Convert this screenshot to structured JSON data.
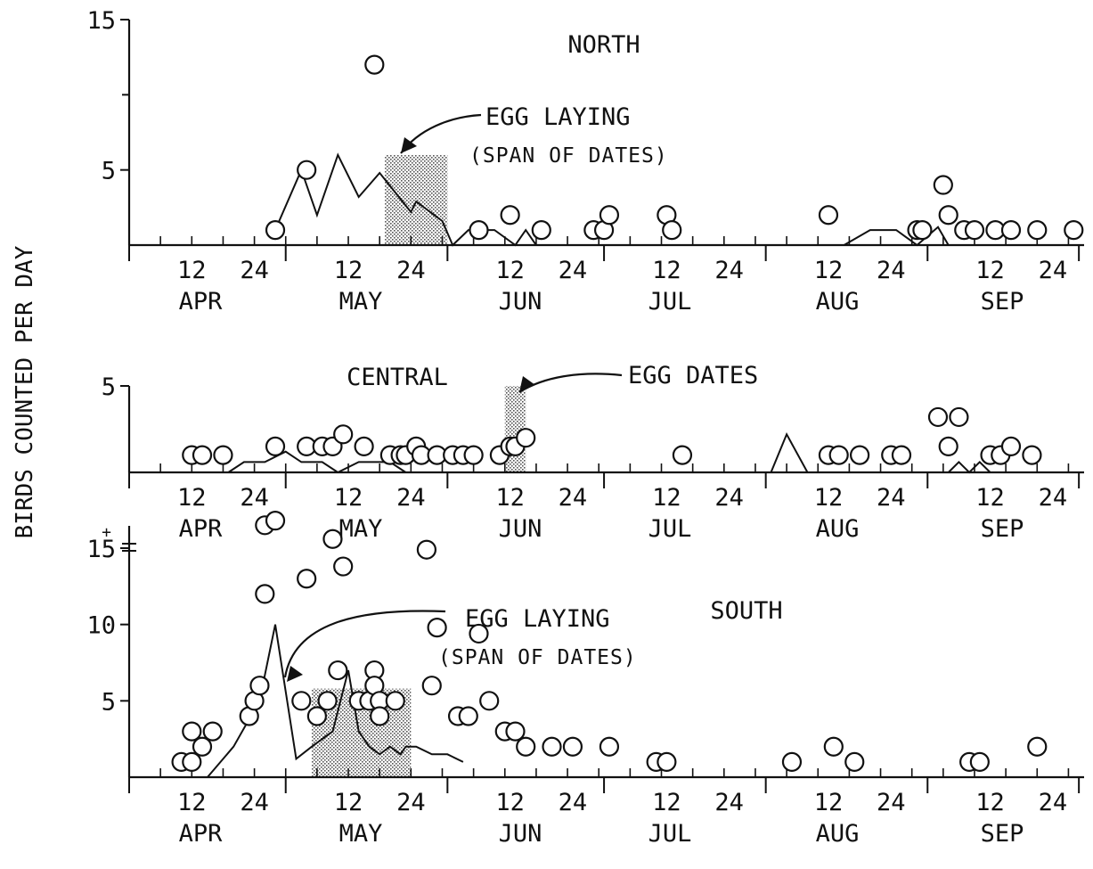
{
  "ylabel": "BIRDS COUNTED PER DAY",
  "month_labels": [
    "APR",
    "MAY",
    "JUN",
    "JUL",
    "AUG",
    "SEP"
  ],
  "day_tick_labels": [
    "12",
    "24"
  ],
  "colors": {
    "ink": "#111111",
    "background": "#ffffff",
    "shade": "#9a9a9a"
  },
  "chart_data": [
    {
      "type": "scatter",
      "title": "NORTH",
      "ylim": [
        0,
        15
      ],
      "yticks": [
        5,
        15
      ],
      "annotations": [
        {
          "line1": "EGG LAYING",
          "line2": "(SPAN OF DATES)"
        }
      ],
      "egg_span": {
        "start": "May 19",
        "end": "May 31"
      },
      "line_series": [
        {
          "x": "Apr 28",
          "y": 1
        },
        {
          "x": "May 3",
          "y": 5
        },
        {
          "x": "May 6",
          "y": 2
        },
        {
          "x": "May 10",
          "y": 6
        },
        {
          "x": "May 14",
          "y": 3.2
        },
        {
          "x": "May 18",
          "y": 4.8
        },
        {
          "x": "May 24",
          "y": 2.2
        },
        {
          "x": "May 25",
          "y": 2.9
        },
        {
          "x": "May 30",
          "y": 1.6
        },
        {
          "x": "Jun 1",
          "y": 0
        },
        {
          "x": "Jun 4",
          "y": 1
        },
        {
          "x": "Jun 9",
          "y": 1
        },
        {
          "x": "Jun 13",
          "y": 0
        },
        {
          "x": "Jun 15",
          "y": 1
        },
        {
          "x": "Jun 17",
          "y": 0
        },
        {
          "x": "Aug 15",
          "y": 0
        },
        {
          "x": "Aug 20",
          "y": 1
        },
        {
          "x": "Aug 25",
          "y": 1
        },
        {
          "x": "Aug 29",
          "y": 0
        },
        {
          "x": "Sep 2",
          "y": 1.2
        },
        {
          "x": "Sep 4",
          "y": 0
        }
      ],
      "points": [
        {
          "x": "Apr 28",
          "y": 1
        },
        {
          "x": "May 4",
          "y": 5
        },
        {
          "x": "May 17",
          "y": 12
        },
        {
          "x": "Jun 6",
          "y": 1
        },
        {
          "x": "Jun 12",
          "y": 2
        },
        {
          "x": "Jun 18",
          "y": 1
        },
        {
          "x": "Jun 28",
          "y": 1
        },
        {
          "x": "Jun 30",
          "y": 1
        },
        {
          "x": "Jul 1",
          "y": 2
        },
        {
          "x": "Jul 12",
          "y": 2
        },
        {
          "x": "Jul 13",
          "y": 1
        },
        {
          "x": "Aug 12",
          "y": 2
        },
        {
          "x": "Aug 29",
          "y": 1
        },
        {
          "x": "Aug 30",
          "y": 1
        },
        {
          "x": "Sep 3",
          "y": 4
        },
        {
          "x": "Sep 4",
          "y": 2
        },
        {
          "x": "Sep 7",
          "y": 1
        },
        {
          "x": "Sep 9",
          "y": 1
        },
        {
          "x": "Sep 13",
          "y": 1
        },
        {
          "x": "Sep 16",
          "y": 1
        },
        {
          "x": "Sep 21",
          "y": 1
        },
        {
          "x": "Sep 28",
          "y": 1
        }
      ]
    },
    {
      "type": "scatter",
      "title": "CENTRAL",
      "ylim": [
        0,
        5
      ],
      "yticks": [
        5
      ],
      "annotations": [
        {
          "line1": "EGG DATES",
          "line2": ""
        }
      ],
      "egg_span": {
        "start": "Jun 11",
        "end": "Jun 15"
      },
      "line_series": [
        {
          "x": "Apr 19",
          "y": 0
        },
        {
          "x": "Apr 22",
          "y": 0.6
        },
        {
          "x": "Apr 26",
          "y": 0.6
        },
        {
          "x": "Apr 30",
          "y": 1.2
        },
        {
          "x": "May 3",
          "y": 0.6
        },
        {
          "x": "May 7",
          "y": 0.6
        },
        {
          "x": "May 10",
          "y": 0
        },
        {
          "x": "May 14",
          "y": 0.6
        },
        {
          "x": "May 20",
          "y": 0.6
        },
        {
          "x": "May 23",
          "y": 0
        },
        {
          "x": "Aug 1",
          "y": 0
        },
        {
          "x": "Aug 4",
          "y": 2.2
        },
        {
          "x": "Aug 8",
          "y": 0
        },
        {
          "x": "Sep 4",
          "y": 0
        },
        {
          "x": "Sep 6",
          "y": 0.6
        },
        {
          "x": "Sep 8",
          "y": 0
        },
        {
          "x": "Sep 10",
          "y": 0.6
        },
        {
          "x": "Sep 12",
          "y": 0
        }
      ],
      "points": [
        {
          "x": "Apr 12",
          "y": 1
        },
        {
          "x": "Apr 14",
          "y": 1
        },
        {
          "x": "Apr 18",
          "y": 1
        },
        {
          "x": "Apr 28",
          "y": 1.5
        },
        {
          "x": "May 4",
          "y": 1.5
        },
        {
          "x": "May 7",
          "y": 1.5
        },
        {
          "x": "May 9",
          "y": 1.5
        },
        {
          "x": "May 11",
          "y": 2.2
        },
        {
          "x": "May 15",
          "y": 1.5
        },
        {
          "x": "May 20",
          "y": 1
        },
        {
          "x": "May 22",
          "y": 1
        },
        {
          "x": "May 23",
          "y": 1
        },
        {
          "x": "May 25",
          "y": 1.5
        },
        {
          "x": "May 26",
          "y": 1
        },
        {
          "x": "May 29",
          "y": 1
        },
        {
          "x": "Jun 1",
          "y": 1
        },
        {
          "x": "Jun 3",
          "y": 1
        },
        {
          "x": "Jun 5",
          "y": 1
        },
        {
          "x": "Jun 10",
          "y": 1
        },
        {
          "x": "Jun 12",
          "y": 1.5
        },
        {
          "x": "Jun 13",
          "y": 1.5
        },
        {
          "x": "Jun 15",
          "y": 2
        },
        {
          "x": "Jul 15",
          "y": 1
        },
        {
          "x": "Aug 12",
          "y": 1
        },
        {
          "x": "Aug 14",
          "y": 1
        },
        {
          "x": "Aug 18",
          "y": 1
        },
        {
          "x": "Aug 24",
          "y": 1
        },
        {
          "x": "Aug 26",
          "y": 1
        },
        {
          "x": "Sep 2",
          "y": 3.2
        },
        {
          "x": "Sep 4",
          "y": 1.5
        },
        {
          "x": "Sep 6",
          "y": 3.2
        },
        {
          "x": "Sep 12",
          "y": 1
        },
        {
          "x": "Sep 14",
          "y": 1
        },
        {
          "x": "Sep 16",
          "y": 1.5
        },
        {
          "x": "Sep 20",
          "y": 1
        }
      ]
    },
    {
      "type": "scatter",
      "title": "SOUTH",
      "ylim": [
        0,
        15
      ],
      "yticks": [
        5,
        10,
        15
      ],
      "ymax_label": "15+",
      "annotations": [
        {
          "line1": "EGG LAYING",
          "line2": "(SPAN OF DATES)"
        }
      ],
      "egg_span": {
        "start": "May 5",
        "end": "May 24"
      },
      "line_series": [
        {
          "x": "Apr 15",
          "y": 0
        },
        {
          "x": "Apr 20",
          "y": 2
        },
        {
          "x": "Apr 25",
          "y": 5
        },
        {
          "x": "Apr 28",
          "y": 10
        },
        {
          "x": "May 2",
          "y": 1.2
        },
        {
          "x": "May 5",
          "y": 2
        },
        {
          "x": "May 9",
          "y": 3
        },
        {
          "x": "May 12",
          "y": 7
        },
        {
          "x": "May 14",
          "y": 3
        },
        {
          "x": "May 16",
          "y": 2
        },
        {
          "x": "May 18",
          "y": 1.5
        },
        {
          "x": "May 20",
          "y": 2
        },
        {
          "x": "May 22",
          "y": 1.5
        },
        {
          "x": "May 23",
          "y": 2
        },
        {
          "x": "May 25",
          "y": 2
        },
        {
          "x": "May 28",
          "y": 1.5
        },
        {
          "x": "May 31",
          "y": 1.5
        },
        {
          "x": "Jun 3",
          "y": 1
        }
      ],
      "points": [
        {
          "x": "Apr 10",
          "y": 1
        },
        {
          "x": "Apr 12",
          "y": 1
        },
        {
          "x": "Apr 12",
          "y": 3
        },
        {
          "x": "Apr 14",
          "y": 2
        },
        {
          "x": "Apr 16",
          "y": 3
        },
        {
          "x": "Apr 23",
          "y": 4
        },
        {
          "x": "Apr 24",
          "y": 5
        },
        {
          "x": "Apr 25",
          "y": 6
        },
        {
          "x": "Apr 26",
          "y": 12
        },
        {
          "x": "Apr 26",
          "y": 16.5
        },
        {
          "x": "Apr 28",
          "y": 16.8
        },
        {
          "x": "May 3",
          "y": 5
        },
        {
          "x": "May 4",
          "y": 13
        },
        {
          "x": "May 6",
          "y": 4
        },
        {
          "x": "May 8",
          "y": 5
        },
        {
          "x": "May 9",
          "y": 15.6
        },
        {
          "x": "May 10",
          "y": 7
        },
        {
          "x": "May 11",
          "y": 13.8
        },
        {
          "x": "May 14",
          "y": 5
        },
        {
          "x": "May 16",
          "y": 5
        },
        {
          "x": "May 17",
          "y": 7
        },
        {
          "x": "May 17",
          "y": 6
        },
        {
          "x": "May 18",
          "y": 5
        },
        {
          "x": "May 18",
          "y": 4
        },
        {
          "x": "May 21",
          "y": 5
        },
        {
          "x": "May 27",
          "y": 14.9
        },
        {
          "x": "May 28",
          "y": 6
        },
        {
          "x": "May 29",
          "y": 9.8
        },
        {
          "x": "Jun 2",
          "y": 4
        },
        {
          "x": "Jun 4",
          "y": 4
        },
        {
          "x": "Jun 6",
          "y": 9.4
        },
        {
          "x": "Jun 8",
          "y": 5
        },
        {
          "x": "Jun 11",
          "y": 3
        },
        {
          "x": "Jun 13",
          "y": 3
        },
        {
          "x": "Jun 15",
          "y": 2
        },
        {
          "x": "Jun 20",
          "y": 2
        },
        {
          "x": "Jun 24",
          "y": 2
        },
        {
          "x": "Jul 1",
          "y": 2
        },
        {
          "x": "Jul 10",
          "y": 1
        },
        {
          "x": "Jul 12",
          "y": 1
        },
        {
          "x": "Aug 5",
          "y": 1
        },
        {
          "x": "Aug 13",
          "y": 2
        },
        {
          "x": "Aug 17",
          "y": 1
        },
        {
          "x": "Sep 8",
          "y": 1
        },
        {
          "x": "Sep 10",
          "y": 1
        },
        {
          "x": "Sep 21",
          "y": 2
        }
      ]
    }
  ]
}
